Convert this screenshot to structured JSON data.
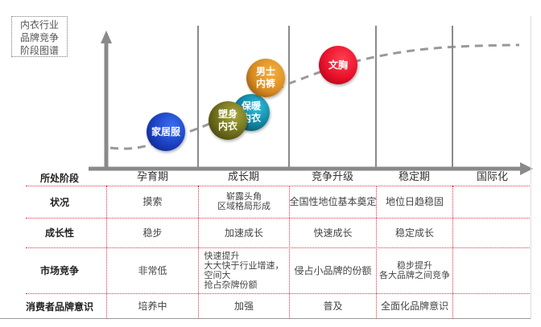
{
  "title": [
    "内衣行业",
    "品牌竞争",
    "阶段图谱"
  ],
  "stage_header": "所处阶段",
  "stages": [
    "孕育期",
    "成长期",
    "竞争升级",
    "稳定期",
    "国际化"
  ],
  "rows": [
    {
      "label": "状况",
      "cells": [
        "摸索",
        "崭露头角\n区域格局形成",
        "全国性地位基本奠定",
        "地位日趋稳固",
        ""
      ]
    },
    {
      "label": "成长性",
      "cells": [
        "稳步",
        "加速成长",
        "快速成长",
        "稳定成长",
        ""
      ]
    },
    {
      "label": "市场竞争",
      "cells": [
        "非常低",
        "快速提升\n大大快于行业增速，\n空间大\n抢占杂牌份额",
        "侵占小品牌的份额",
        "稳步提升\n各大品牌之间竞争",
        ""
      ]
    },
    {
      "label": "消费者品牌意识",
      "cells": [
        "培养中",
        "加强",
        "普及",
        "全面化品牌意识",
        ""
      ]
    }
  ],
  "bubbles": [
    {
      "label": "家居服",
      "color": "#1a3fbf"
    },
    {
      "label": "塑身\n内衣",
      "color": "#6b6a1a"
    },
    {
      "label": "保暖\n内衣",
      "color": "#0f7f9a"
    },
    {
      "label": "男士\n内裤",
      "color": "#d88a20"
    },
    {
      "label": "文胸",
      "color": "#e8102a"
    }
  ],
  "colors": {
    "axis": "#8a8a8a",
    "grid_dotted": "#e03040",
    "curve": "#999999"
  }
}
